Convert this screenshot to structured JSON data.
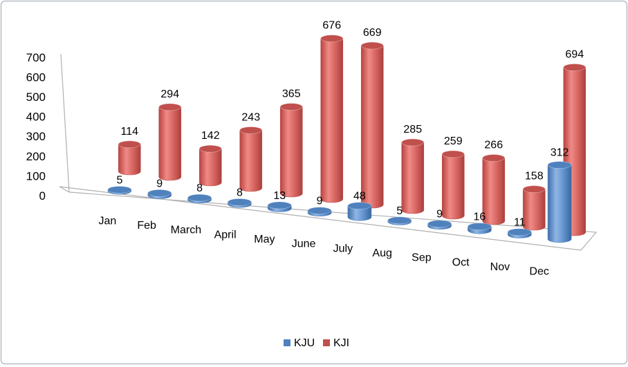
{
  "chart_data": {
    "type": "bar",
    "style": "3d-cylinder",
    "categories": [
      "Jan",
      "Feb",
      "March",
      "April",
      "May",
      "June",
      "July",
      "Aug",
      "Sep",
      "Oct",
      "Nov",
      "Dec"
    ],
    "series": [
      {
        "name": "KJU",
        "color": "#4f81bd",
        "values": [
          5,
          9,
          8,
          8,
          13,
          9,
          48,
          5,
          9,
          16,
          11,
          312
        ]
      },
      {
        "name": "KJI",
        "color": "#c0504d",
        "values": [
          114,
          294,
          142,
          243,
          365,
          676,
          669,
          285,
          259,
          266,
          158,
          694
        ]
      }
    ],
    "y_ticks": [
      "0",
      "100",
      "200",
      "300",
      "400",
      "500",
      "600",
      "700"
    ],
    "ylim": [
      0,
      700
    ],
    "legend_position": "bottom"
  },
  "colors": {
    "kju": "#4f81bd",
    "kji": "#c0504d",
    "axis": "#b0b0b0"
  }
}
